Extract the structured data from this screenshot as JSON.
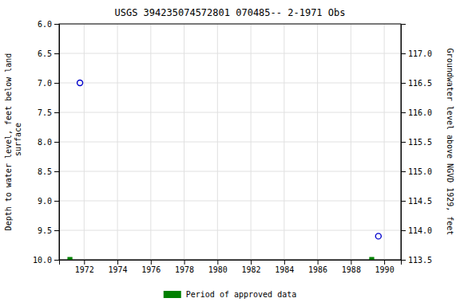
{
  "chart_data": {
    "type": "scatter",
    "title": "USGS 394235074572801 070485-- 2-1971 Obs",
    "ylabel": "Depth to water level, feet below land\n surface",
    "y2label": "Groundwater level above NGVD 1929, feet",
    "xlim": [
      1970.5,
      1991.0
    ],
    "xticks": [
      1972,
      1974,
      1976,
      1978,
      1980,
      1982,
      1984,
      1986,
      1988,
      1990
    ],
    "ylim": [
      10.0,
      6.0
    ],
    "yticks": [
      {
        "value": 6.0,
        "label": "6.0"
      },
      6.5,
      {
        "value": 7.0,
        "label": "7.0"
      },
      7.5,
      {
        "value": 8.0,
        "label": "8.0"
      },
      8.5,
      {
        "value": 9.0,
        "label": "9.0"
      },
      9.5,
      {
        "value": 10.0,
        "label": "10.0"
      }
    ],
    "y2lim": [
      113.5,
      117.5
    ],
    "y2ticks": [
      {
        "value": 117.0,
        "label": "117.0"
      },
      116.5,
      {
        "value": 116.0,
        "label": "116.0"
      },
      115.5,
      {
        "value": 115.0,
        "label": "115.0"
      },
      114.5,
      {
        "value": 114.0,
        "label": "114.0"
      },
      113.5
    ],
    "grid": true,
    "legend": "bottom",
    "series": [
      {
        "type": "scatter",
        "marker": "open-circle",
        "color": "#0000cc",
        "x": [
          1971.75,
          1989.65
        ],
        "values": [
          7.0,
          9.6
        ]
      },
      {
        "type": "segment",
        "name": "Period of approved data",
        "color": "#008000",
        "x_start": [
          1971.0,
          1989.1
        ],
        "x_end": [
          1971.3,
          1989.4
        ],
        "values": [
          10.0,
          10.0
        ]
      }
    ]
  }
}
